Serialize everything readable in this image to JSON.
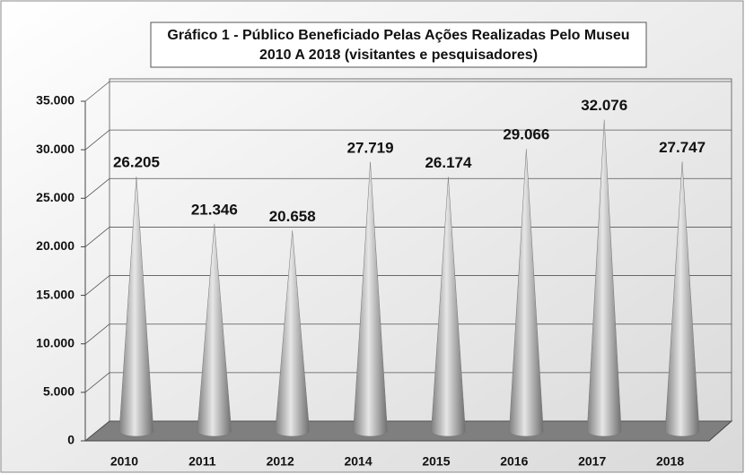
{
  "chart_data": {
    "type": "cone",
    "title": [
      "Gráfico 1 - Público Beneficiado Pelas Ações Realizadas Pelo Museu",
      "2010 A 2018 (visitantes e pesquisadores)"
    ],
    "categories": [
      "2010",
      "2011",
      "2012",
      "2014",
      "2015",
      "2016",
      "2017",
      "2018"
    ],
    "values": [
      26205,
      21346,
      20658,
      27719,
      26174,
      29066,
      32076,
      27747
    ],
    "value_labels": [
      "26.205",
      "21.346",
      "20.658",
      "27.719",
      "26.174",
      "29.066",
      "32.076",
      "27.747"
    ],
    "color": "#a6a6a6",
    "ylim": [
      0,
      35000
    ],
    "yticks": [
      0,
      {
        "value": 5000,
        "label": "5.000"
      },
      {
        "value": 10000,
        "label": "10.000"
      },
      {
        "value": 15000,
        "label": "15.000"
      },
      {
        "value": 20000,
        "label": "20.000"
      },
      {
        "value": 25000,
        "label": "25.000"
      },
      {
        "value": 30000,
        "label": "30.000"
      },
      {
        "value": 35000,
        "label": "35.000"
      }
    ],
    "grid": true
  }
}
